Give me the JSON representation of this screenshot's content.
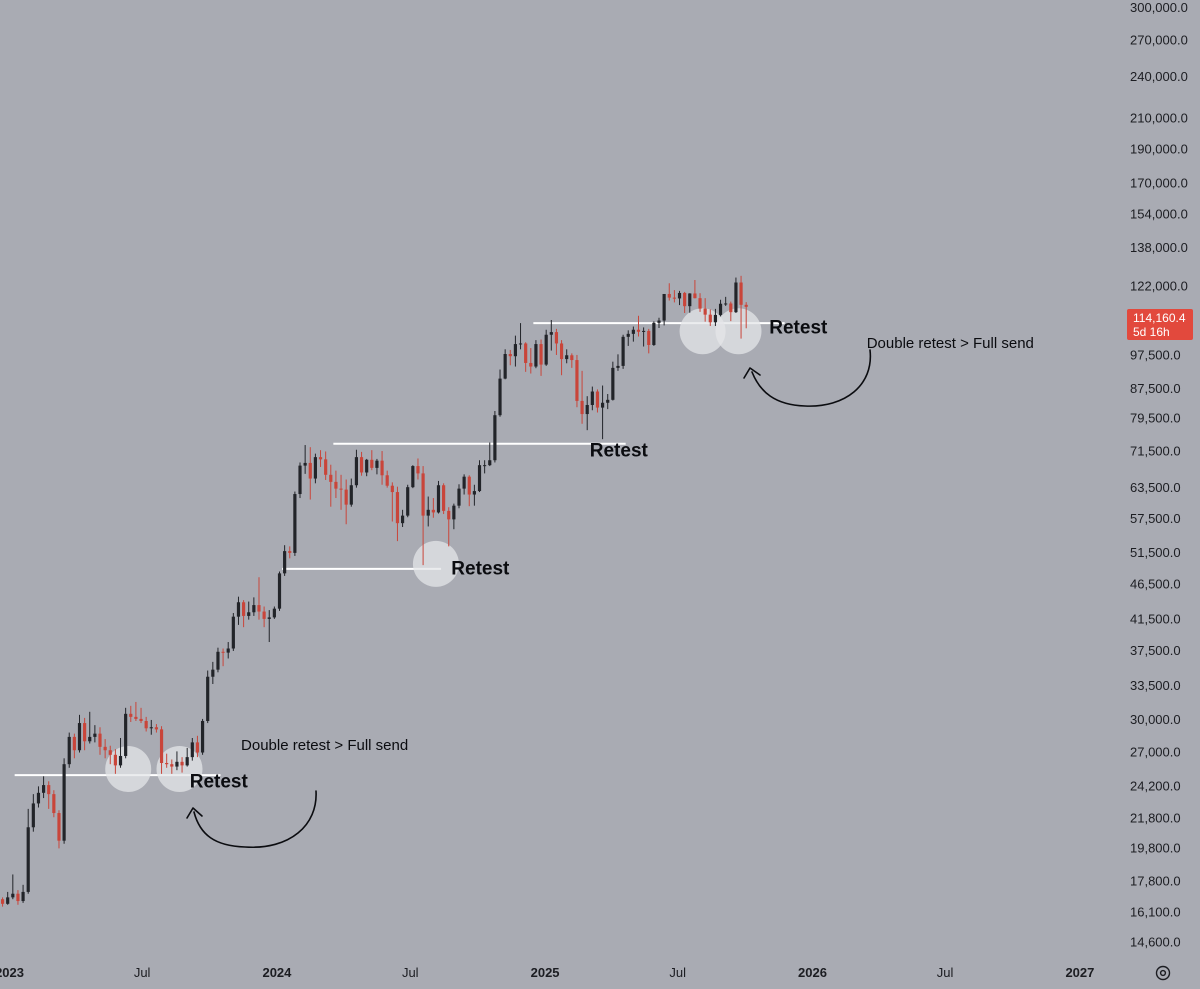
{
  "chart_data": {
    "type": "candlestick",
    "title": "",
    "xlabel": "",
    "ylabel": "",
    "y_scale": "log",
    "ylim": [
      13800,
      308000
    ],
    "xlim": [
      "2022-12-19",
      "2027-02-22"
    ],
    "grid": false,
    "colors": {
      "background": "#a9abb3",
      "up": "#222429",
      "down": "#c9453a",
      "price_tag": "#e2493d",
      "support_line": "#ffffff",
      "retest_circle": "#e4e5e8",
      "annotation": "#0b0c10"
    },
    "y_ticks": [
      {
        "value": 300000,
        "label": "300,000.0"
      },
      {
        "value": 270000,
        "label": "270,000.0"
      },
      {
        "value": 240000,
        "label": "240,000.0"
      },
      {
        "value": 210000,
        "label": "210,000.0"
      },
      {
        "value": 190000,
        "label": "190,000.0"
      },
      {
        "value": 170000,
        "label": "170,000.0"
      },
      {
        "value": 154000,
        "label": "154,000.0"
      },
      {
        "value": 138000,
        "label": "138,000.0"
      },
      {
        "value": 122000,
        "label": "122,000.0"
      },
      {
        "value": 97500,
        "label": "97,500.0"
      },
      {
        "value": 87500,
        "label": "87,500.0"
      },
      {
        "value": 79500,
        "label": "79,500.0"
      },
      {
        "value": 71500,
        "label": "71,500.0"
      },
      {
        "value": 63500,
        "label": "63,500.0"
      },
      {
        "value": 57500,
        "label": "57,500.0"
      },
      {
        "value": 51500,
        "label": "51,500.0"
      },
      {
        "value": 46500,
        "label": "46,500.0"
      },
      {
        "value": 41500,
        "label": "41,500.0"
      },
      {
        "value": 37500,
        "label": "37,500.0"
      },
      {
        "value": 33500,
        "label": "33,500.0"
      },
      {
        "value": 30000,
        "label": "30,000.0"
      },
      {
        "value": 27000,
        "label": "27,000.0"
      },
      {
        "value": 24200,
        "label": "24,200.0"
      },
      {
        "value": 21800,
        "label": "21,800.0"
      },
      {
        "value": 19800,
        "label": "19,800.0"
      },
      {
        "value": 17800,
        "label": "17,800.0"
      },
      {
        "value": 16100,
        "label": "16,100.0"
      },
      {
        "value": 14600,
        "label": "14,600.0"
      }
    ],
    "x_ticks": [
      {
        "date": "2023-01-01",
        "label": "2023",
        "bold": true
      },
      {
        "date": "2023-07-01",
        "label": "Jul",
        "bold": false
      },
      {
        "date": "2024-01-01",
        "label": "2024",
        "bold": true
      },
      {
        "date": "2024-07-01",
        "label": "Jul",
        "bold": false
      },
      {
        "date": "2025-01-01",
        "label": "2025",
        "bold": true
      },
      {
        "date": "2025-07-01",
        "label": "Jul",
        "bold": false
      },
      {
        "date": "2026-01-01",
        "label": "2026",
        "bold": true
      },
      {
        "date": "2026-07-01",
        "label": "Jul",
        "bold": false
      },
      {
        "date": "2027-01-01",
        "label": "2027",
        "bold": true
      }
    ],
    "current_price": {
      "value": 114160.4,
      "label": "114,160.4",
      "countdown": "5d 16h"
    },
    "candle_interval_days": 7,
    "series": [
      {
        "start": "2022-12-19",
        "ohlc": [
          [
            16800,
            16900,
            16400,
            16550
          ],
          [
            16550,
            17200,
            16500,
            16900
          ],
          [
            16900,
            18200,
            16800,
            17100
          ],
          [
            17100,
            17300,
            16500,
            16700
          ],
          [
            16700,
            17600,
            16600,
            17200
          ],
          [
            17200,
            22500,
            17100,
            21200
          ],
          [
            21200,
            23600,
            20900,
            22900
          ],
          [
            22900,
            24200,
            22600,
            23700
          ],
          [
            23700,
            25000,
            23300,
            24300
          ],
          [
            24300,
            24600,
            22500,
            23600
          ],
          [
            23600,
            23900,
            21900,
            22200
          ],
          [
            22200,
            22400,
            19800,
            20300
          ],
          [
            20300,
            26500,
            20100,
            26000
          ],
          [
            26000,
            28800,
            25700,
            28400
          ],
          [
            28400,
            28700,
            26500,
            27200
          ],
          [
            27200,
            30500,
            27000,
            29700
          ],
          [
            29700,
            30200,
            27200,
            28000
          ],
          [
            28000,
            30800,
            27800,
            28400
          ],
          [
            28400,
            29500,
            27900,
            28700
          ],
          [
            28700,
            29300,
            26800,
            27500
          ],
          [
            27500,
            28200,
            26500,
            27200
          ],
          [
            27200,
            27600,
            26000,
            26800
          ],
          [
            26800,
            27300,
            25200,
            25900
          ],
          [
            25900,
            28300,
            25700,
            26700
          ],
          [
            26700,
            31200,
            26500,
            30600
          ],
          [
            30600,
            31400,
            29800,
            30300
          ],
          [
            30300,
            31800,
            29900,
            30100
          ],
          [
            30100,
            31200,
            29700,
            29900
          ],
          [
            29900,
            30300,
            28900,
            29200
          ],
          [
            29200,
            30000,
            28600,
            29300
          ],
          [
            29300,
            29600,
            28800,
            29100
          ],
          [
            29100,
            29400,
            25200,
            26100
          ],
          [
            26100,
            26900,
            25700,
            26000
          ],
          [
            26000,
            26400,
            25200,
            25800
          ],
          [
            25800,
            27100,
            25500,
            26200
          ],
          [
            26200,
            26600,
            25300,
            25900
          ],
          [
            25900,
            27400,
            25800,
            26600
          ],
          [
            26600,
            28300,
            26300,
            27900
          ],
          [
            27900,
            28500,
            26600,
            27000
          ],
          [
            27000,
            30100,
            26800,
            29900
          ],
          [
            29900,
            35200,
            29700,
            34500
          ],
          [
            34500,
            36200,
            33700,
            35300
          ],
          [
            35300,
            37900,
            35000,
            37400
          ],
          [
            37400,
            37800,
            35700,
            37300
          ],
          [
            37300,
            38600,
            36600,
            37800
          ],
          [
            37800,
            42400,
            37500,
            41900
          ],
          [
            41900,
            44700,
            40800,
            43900
          ],
          [
            43900,
            44200,
            40500,
            42000
          ],
          [
            42000,
            44000,
            41500,
            42500
          ],
          [
            42500,
            44600,
            42000,
            43500
          ],
          [
            43500,
            47600,
            41500,
            42600
          ],
          [
            42600,
            43300,
            40500,
            41600
          ],
          [
            41600,
            42800,
            38600,
            41800
          ],
          [
            41800,
            43300,
            41600,
            43000
          ],
          [
            43000,
            48500,
            42700,
            48200
          ],
          [
            48200,
            52800,
            47800,
            51800
          ],
          [
            51800,
            52600,
            50600,
            51500
          ],
          [
            51500,
            62800,
            51000,
            62300
          ],
          [
            62300,
            69000,
            61500,
            68300
          ],
          [
            68300,
            73000,
            66500,
            68900
          ],
          [
            68900,
            72500,
            61200,
            65500
          ],
          [
            65500,
            71000,
            64500,
            70200
          ],
          [
            70200,
            71800,
            68000,
            69700
          ],
          [
            69700,
            71500,
            65200,
            66300
          ],
          [
            66300,
            68500,
            59800,
            64800
          ],
          [
            64800,
            67200,
            61500,
            63400
          ],
          [
            63400,
            66300,
            59200,
            63200
          ],
          [
            63200,
            65300,
            56500,
            60200
          ],
          [
            60200,
            65500,
            59800,
            64100
          ],
          [
            64100,
            71900,
            63600,
            70200
          ],
          [
            70200,
            71400,
            66100,
            66800
          ],
          [
            66800,
            69800,
            66000,
            69600
          ],
          [
            69600,
            71800,
            67300,
            67800
          ],
          [
            67800,
            69800,
            66400,
            69400
          ],
          [
            69400,
            71600,
            64200,
            66200
          ],
          [
            66200,
            67200,
            63600,
            64000
          ],
          [
            64000,
            64700,
            57000,
            62700
          ],
          [
            62700,
            63800,
            53500,
            56700
          ],
          [
            56700,
            59200,
            56000,
            58100
          ],
          [
            58100,
            64200,
            57800,
            63700
          ],
          [
            63700,
            68400,
            63500,
            68200
          ],
          [
            68200,
            69900,
            65300,
            66600
          ],
          [
            66600,
            68200,
            49500,
            58100
          ],
          [
            58100,
            61800,
            56100,
            59200
          ],
          [
            59200,
            61500,
            57700,
            58700
          ],
          [
            58700,
            65000,
            58500,
            64100
          ],
          [
            64100,
            64500,
            58400,
            59000
          ],
          [
            59000,
            59700,
            52600,
            57400
          ],
          [
            57400,
            60400,
            55600,
            60000
          ],
          [
            60000,
            64300,
            59500,
            63400
          ],
          [
            63400,
            66400,
            62200,
            65900
          ],
          [
            65900,
            66200,
            59900,
            62200
          ],
          [
            62200,
            64200,
            60000,
            62900
          ],
          [
            62900,
            69500,
            62700,
            68400
          ],
          [
            68400,
            69500,
            66600,
            68400
          ],
          [
            68400,
            73600,
            68200,
            69500
          ],
          [
            69500,
            81500,
            69000,
            80400
          ],
          [
            80400,
            93200,
            80000,
            90500
          ],
          [
            90500,
            99500,
            90300,
            98000
          ],
          [
            98000,
            99300,
            94500,
            97300
          ],
          [
            97300,
            104000,
            94100,
            101200
          ],
          [
            101200,
            108300,
            99500,
            101400
          ],
          [
            101400,
            101800,
            92500,
            95200
          ],
          [
            95200,
            99900,
            92000,
            94100
          ],
          [
            94100,
            102500,
            93600,
            101200
          ],
          [
            101200,
            102700,
            91300,
            94700
          ],
          [
            94700,
            106000,
            94300,
            104300
          ],
          [
            104300,
            109400,
            99100,
            105200
          ],
          [
            105200,
            106300,
            97700,
            101400
          ],
          [
            101400,
            102500,
            91500,
            96400
          ],
          [
            96400,
            99500,
            95100,
            97600
          ],
          [
            97600,
            98200,
            93700,
            96100
          ],
          [
            96100,
            97700,
            82500,
            84200
          ],
          [
            84200,
            92800,
            78200,
            80700
          ],
          [
            80700,
            85500,
            76600,
            83100
          ],
          [
            83100,
            88200,
            81700,
            86800
          ],
          [
            86800,
            87400,
            81100,
            82400
          ],
          [
            82400,
            88500,
            74400,
            83700
          ],
          [
            83700,
            86100,
            82000,
            84500
          ],
          [
            84500,
            95600,
            84300,
            93700
          ],
          [
            93700,
            97900,
            92800,
            94300
          ],
          [
            94300,
            104300,
            93400,
            103600
          ],
          [
            103600,
            105800,
            100600,
            104600
          ],
          [
            104600,
            107100,
            102000,
            106000
          ],
          [
            106000,
            110900,
            103700,
            105300
          ],
          [
            105300,
            106800,
            100400,
            105600
          ],
          [
            105600,
            106300,
            98200,
            100900
          ],
          [
            100900,
            108900,
            100600,
            108400
          ],
          [
            108400,
            110200,
            106600,
            109200
          ],
          [
            109200,
            118900,
            107500,
            119000
          ],
          [
            119000,
            123200,
            116500,
            117600
          ],
          [
            117600,
            120500,
            115800,
            117300
          ],
          [
            117300,
            120200,
            114800,
            119400
          ],
          [
            119400,
            119800,
            111900,
            114400
          ],
          [
            114400,
            119300,
            112000,
            119200
          ],
          [
            119200,
            124500,
            117300,
            117400
          ],
          [
            117400,
            119300,
            112300,
            113500
          ],
          [
            113500,
            117400,
            108800,
            111300
          ],
          [
            111300,
            113200,
            107300,
            108600
          ],
          [
            108600,
            113400,
            107300,
            111200
          ],
          [
            111200,
            116800,
            110700,
            115300
          ],
          [
            115300,
            117900,
            114500,
            115400
          ],
          [
            115400,
            116100,
            109000,
            112200
          ],
          [
            112200,
            125500,
            111900,
            123500
          ],
          [
            123500,
            126200,
            103000,
            114900
          ],
          [
            114900,
            115900,
            106500,
            114160.4
          ]
        ]
      }
    ],
    "support_lines": [
      {
        "price": 25100,
        "x_start": "2023-01-08",
        "x_end": "2023-10-16"
      },
      {
        "price": 48900,
        "x_start": "2024-01-08",
        "x_end": "2024-08-12"
      },
      {
        "price": 73300,
        "x_start": "2024-03-18",
        "x_end": "2025-04-21"
      },
      {
        "price": 108300,
        "x_start": "2024-12-16",
        "x_end": "2025-11-24"
      }
    ],
    "retest_circles": [
      {
        "date": "2023-06-12",
        "price": 25600
      },
      {
        "date": "2023-08-21",
        "price": 25600
      },
      {
        "date": "2024-08-05",
        "price": 49700
      },
      {
        "date": "2025-08-04",
        "price": 105500
      },
      {
        "date": "2025-09-22",
        "price": 105500
      }
    ],
    "annotations": [
      {
        "text": "Retest",
        "style": "bold",
        "date": "2023-09-04",
        "price": 24100
      },
      {
        "text": "Double retest > Full send",
        "style": "note",
        "date": "2023-11-13",
        "price": 27200
      },
      {
        "text": "Retest",
        "style": "bold",
        "date": "2024-08-26",
        "price": 48000
      },
      {
        "text": "Retest",
        "style": "bold",
        "date": "2025-03-03",
        "price": 70300
      },
      {
        "text": "Retest",
        "style": "bold",
        "date": "2025-11-03",
        "price": 104800
      },
      {
        "text": "Double retest > Full send",
        "style": "note",
        "date": "2026-03-16",
        "price": 100000
      }
    ]
  }
}
